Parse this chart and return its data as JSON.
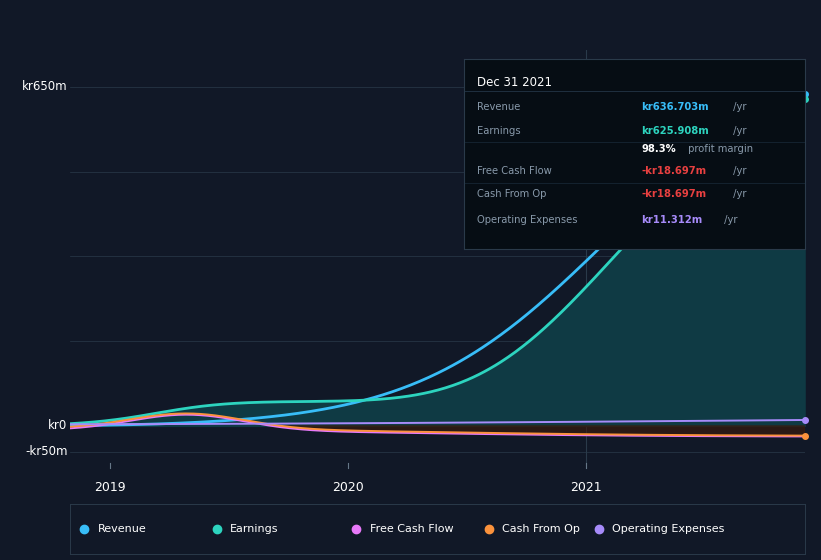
{
  "bg_color": "#111827",
  "plot_bg_color": "#111827",
  "y_label_top": "kr650m",
  "y_label_zero": "kr0",
  "y_label_neg": "-kr50m",
  "x_ticks": [
    "2019",
    "2020",
    "2021"
  ],
  "legend_items": [
    {
      "label": "Revenue",
      "color": "#38bdf8"
    },
    {
      "label": "Earnings",
      "color": "#2dd4bf"
    },
    {
      "label": "Free Cash Flow",
      "color": "#e879f9"
    },
    {
      "label": "Cash From Op",
      "color": "#fb923c"
    },
    {
      "label": "Operating Expenses",
      "color": "#a78bfa"
    }
  ],
  "revenue_color": "#38bdf8",
  "earnings_color": "#2dd4bf",
  "earnings_fill_color": "#0f3a44",
  "free_cash_flow_color": "#e879f9",
  "cash_from_op_color": "#fb923c",
  "op_expenses_color": "#a78bfa",
  "tooltip_title": "Dec 31 2021",
  "tooltip_title_color": "#ffffff",
  "grid_color": "#2a3a4a",
  "vline_color": "#2a3a4a",
  "tooltip_bg": "#060d14",
  "tooltip_border": "#2a3a4a"
}
